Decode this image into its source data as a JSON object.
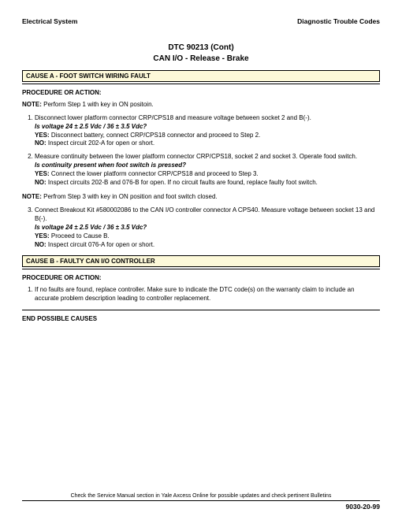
{
  "header": {
    "left": "Electrical System",
    "right": "Diagnostic Trouble Codes"
  },
  "title": {
    "line1": "DTC 90213 (Cont)",
    "line2": "CAN I/O - Release - Brake"
  },
  "causeA": {
    "bar": "CAUSE A - FOOT SWITCH WIRING FAULT",
    "procLabel": "PROCEDURE OR ACTION:",
    "note1_prefix": "NOTE:",
    "note1_text": "Perform Step 1 with key in ON positoin.",
    "steps_1_2": [
      {
        "text": "Disconnect lower platform connector CRP/CPS18 and measure voltage between socket 2 and B(-).",
        "q": "Is voltage 24 ± 2.5 Vdc / 36 ± 3.5 Vdc?",
        "yes": "Disconnect battery, connect CRP/CPS18 connector and proceed to Step 2.",
        "no": "Inspect circuit 202-A for open or short."
      },
      {
        "text": "Measure continuity between the lower platform connector CRP/CPS18, socket 2 and socket 3. Operate food switch.",
        "q": "Is continuity present when foot switch is pressed?",
        "yes": "Connect the lower platform connector CRP/CPS18 and proceed to Step 3.",
        "no": "Inspect circuits 202-B and 076-B for open. If no circuit faults are found, replace faulty foot switch."
      }
    ],
    "note2_prefix": "NOTE:",
    "note2_text": "Perfrom Step 3 with key in ON position and foot switch closed.",
    "steps_3": [
      {
        "text": "Connect Breakout Kit #580002086 to the CAN I/O controller connector A CPS40. Measure voltage between socket 13 and B(-).",
        "q": "Is voltage 24 ± 2.5 Vdc / 36 ± 3.5 Vdc?",
        "yes": "Proceed to Cause B.",
        "no": "Inspect circuit 076-A for open or short."
      }
    ]
  },
  "causeB": {
    "bar": "CAUSE B - FAULTY CAN I/O CONTROLLER",
    "procLabel": "PROCEDURE OR ACTION:",
    "steps": [
      {
        "text": "If no faults are found, replace controller. Make sure to indicate the DTC code(s) on the warranty claim to include an accurate problem description leading to controller replacement."
      }
    ]
  },
  "endLabel": "END POSSIBLE CAUSES",
  "footer": {
    "notice": "Check the Service Manual section in Yale Axcess Online for possible updates and check pertinent Bulletins",
    "page": "9030-20-99"
  },
  "labels": {
    "yes": "YES:",
    "no": "NO:"
  },
  "style": {
    "cause_bg": "#fdf9d9",
    "page_bg": "#ffffff"
  }
}
